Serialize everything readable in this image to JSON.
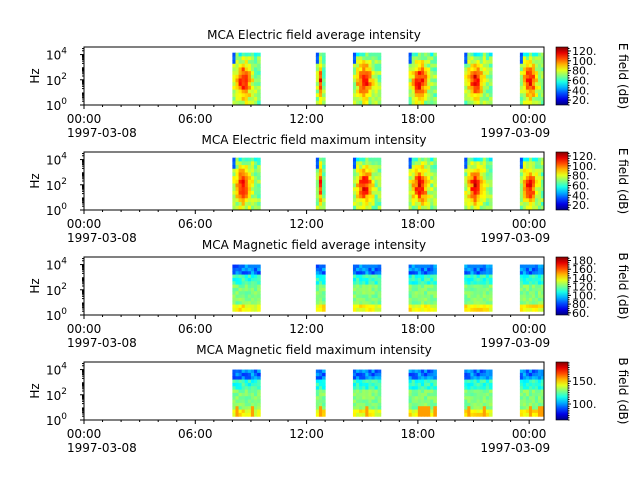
{
  "chart_data": [
    {
      "type": "heatmap",
      "title": "MCA  Electric field average intensity",
      "ylabel": "Hz",
      "colorbar_label": "E field (dB)",
      "colorbar_ticks": [
        "120.",
        "100.",
        "80.",
        "60.",
        "40.",
        "20."
      ],
      "colorbar_range": [
        10,
        128
      ],
      "kind": "electric",
      "ylim_log10": [
        0,
        4.6
      ],
      "ytick_labels": [
        "10",
        "10",
        "10"
      ],
      "ytick_exponents": [
        "0",
        "2",
        "4"
      ],
      "xtick_labels": [
        "00:00",
        "06:00",
        "12:00",
        "18:00",
        "00:00"
      ],
      "x_start_date": "1997-03-08",
      "x_end_date": "1997-03-09",
      "xlim_hours": [
        0,
        24.8
      ],
      "segments_hours": [
        [
          8.0,
          9.5
        ],
        [
          12.5,
          13.0
        ],
        [
          14.5,
          16.0
        ],
        [
          17.5,
          19.0
        ],
        [
          20.5,
          22.0
        ],
        [
          23.5,
          25.0
        ]
      ]
    },
    {
      "type": "heatmap",
      "title": "MCA  Electric field maximum intensity",
      "ylabel": "Hz",
      "colorbar_label": "E field (dB)",
      "colorbar_ticks": [
        "120.",
        "100.",
        "80.",
        "60.",
        "40.",
        "20."
      ],
      "colorbar_range": [
        10,
        128
      ],
      "kind": "electric",
      "ylim_log10": [
        0,
        4.6
      ],
      "ytick_labels": [
        "10",
        "10",
        "10"
      ],
      "ytick_exponents": [
        "0",
        "2",
        "4"
      ],
      "xtick_labels": [
        "00:00",
        "06:00",
        "12:00",
        "18:00",
        "00:00"
      ],
      "x_start_date": "1997-03-08",
      "x_end_date": "1997-03-09",
      "xlim_hours": [
        0,
        24.8
      ],
      "segments_hours": [
        [
          8.0,
          9.5
        ],
        [
          12.5,
          13.0
        ],
        [
          14.5,
          16.0
        ],
        [
          17.5,
          19.0
        ],
        [
          20.5,
          22.0
        ],
        [
          23.5,
          25.0
        ]
      ]
    },
    {
      "type": "heatmap",
      "title": "MCA  Magnetic field average intensity",
      "ylabel": "Hz",
      "colorbar_label": "B field (dB)",
      "colorbar_ticks": [
        "180.",
        "160.",
        "140.",
        "120.",
        "100.",
        "80.",
        "60."
      ],
      "colorbar_range": [
        55,
        188
      ],
      "kind": "magnetic",
      "ylim_log10": [
        0,
        4.6
      ],
      "ytick_labels": [
        "10",
        "10",
        "10"
      ],
      "ytick_exponents": [
        "0",
        "2",
        "4"
      ],
      "xtick_labels": [
        "00:00",
        "06:00",
        "12:00",
        "18:00",
        "00:00"
      ],
      "x_start_date": "1997-03-08",
      "x_end_date": "1997-03-09",
      "xlim_hours": [
        0,
        24.8
      ],
      "segments_hours": [
        [
          8.0,
          9.5
        ],
        [
          12.5,
          13.0
        ],
        [
          14.5,
          16.0
        ],
        [
          17.5,
          19.0
        ],
        [
          20.5,
          22.0
        ],
        [
          23.5,
          25.0
        ]
      ]
    },
    {
      "type": "heatmap",
      "title": "MCA  Magnetic field maximum intensity",
      "ylabel": "Hz",
      "colorbar_label": "B field (dB)",
      "colorbar_ticks": [
        "150.",
        "100."
      ],
      "colorbar_range": [
        65,
        192
      ],
      "kind": "magnetic",
      "ylim_log10": [
        0,
        4.6
      ],
      "ytick_labels": [
        "10",
        "10",
        "10"
      ],
      "ytick_exponents": [
        "0",
        "2",
        "4"
      ],
      "xtick_labels": [
        "00:00",
        "06:00",
        "12:00",
        "18:00",
        "00:00"
      ],
      "x_start_date": "1997-03-08",
      "x_end_date": "1997-03-09",
      "xlim_hours": [
        0,
        24.8
      ],
      "segments_hours": [
        [
          8.0,
          9.5
        ],
        [
          12.5,
          13.0
        ],
        [
          14.5,
          16.0
        ],
        [
          17.5,
          19.0
        ],
        [
          20.5,
          22.0
        ],
        [
          23.5,
          25.0
        ]
      ]
    }
  ]
}
